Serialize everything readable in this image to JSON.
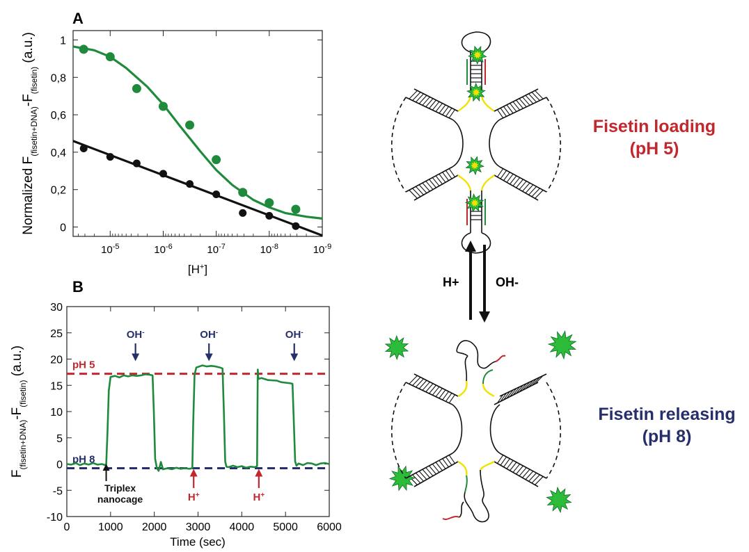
{
  "colors": {
    "green": "#1f8a3c",
    "black": "#111111",
    "red": "#c1272d",
    "navy": "#262f6b",
    "yellow": "#f2e200",
    "burst": "#2dbb3a"
  },
  "chart_data": [
    {
      "panel": "A",
      "type": "scatter",
      "xlabel": "[H+]",
      "ylabel": "Normalized F(fisetin+DNA)-F(fisetin) (a.u.)",
      "x_scale": "log",
      "x_reversed": true,
      "xlim": [
        5.01e-05,
        9.99e-10
      ],
      "ylim": [
        -0.05,
        1.05
      ],
      "x_ticks": [
        {
          "value": 1e-05,
          "base": "10",
          "exp": "-5"
        },
        {
          "value": 1e-06,
          "base": "10",
          "exp": "-6"
        },
        {
          "value": 1e-07,
          "base": "10",
          "exp": "-7"
        },
        {
          "value": 1e-08,
          "base": "10",
          "exp": "-8"
        },
        {
          "value": 1e-09,
          "base": "10",
          "exp": "-9"
        }
      ],
      "y_ticks": [
        {
          "value": 0,
          "label": "0"
        },
        {
          "value": 0.2,
          "label": "0,2"
        },
        {
          "value": 0.4,
          "label": "0,4"
        },
        {
          "value": 0.6,
          "label": "0,6"
        },
        {
          "value": 0.8,
          "label": "0,8"
        },
        {
          "value": 1,
          "label": "1"
        }
      ],
      "series": [
        {
          "color": "green",
          "points": [
            [
              3.162e-05,
              0.95
            ],
            [
              1e-05,
              0.91
            ],
            [
              3.162e-06,
              0.74
            ],
            [
              1e-06,
              0.645
            ],
            [
              3.162e-07,
              0.545
            ],
            [
              1e-07,
              0.36
            ],
            [
              3.162e-08,
              0.185
            ],
            [
              1e-08,
              0.13
            ],
            [
              3.162e-09,
              0.095
            ]
          ],
          "fit": [
            [
              5.01e-05,
              0.965
            ],
            [
              2e-05,
              0.945
            ],
            [
              1e-05,
              0.91
            ],
            [
              5e-06,
              0.85
            ],
            [
              2e-06,
              0.75
            ],
            [
              1e-06,
              0.655
            ],
            [
              5e-07,
              0.545
            ],
            [
              2e-07,
              0.405
            ],
            [
              1e-07,
              0.305
            ],
            [
              5e-08,
              0.225
            ],
            [
              2e-08,
              0.145
            ],
            [
              1e-08,
              0.105
            ],
            [
              5e-09,
              0.075
            ],
            [
              2e-09,
              0.055
            ],
            [
              9.99e-10,
              0.045
            ]
          ]
        },
        {
          "color": "black",
          "points": [
            [
              3.162e-05,
              0.42
            ],
            [
              1e-05,
              0.375
            ],
            [
              3.162e-06,
              0.34
            ],
            [
              1e-06,
              0.285
            ],
            [
              3.162e-07,
              0.23
            ],
            [
              1e-07,
              0.175
            ],
            [
              3.162e-08,
              0.075
            ],
            [
              1e-08,
              0.06
            ],
            [
              3.162e-09,
              0.005
            ]
          ],
          "fit": [
            [
              5.01e-05,
              0.46
            ],
            [
              9.99e-10,
              -0.045
            ]
          ]
        }
      ]
    },
    {
      "panel": "B",
      "type": "line",
      "xlabel": "Time (sec)",
      "ylabel": "F(fisetin+DNA)-F(fisetin) (a.u.)",
      "xlim": [
        0,
        6000
      ],
      "ylim": [
        -10,
        30
      ],
      "x_ticks": [
        0,
        1000,
        2000,
        3000,
        4000,
        5000,
        6000
      ],
      "y_ticks": [
        -10,
        -5,
        0,
        5,
        10,
        15,
        20,
        25,
        30
      ],
      "reference_lines": [
        {
          "label": "pH 5",
          "y": 17.2,
          "color": "red"
        },
        {
          "label": "pH 8",
          "y": -0.8,
          "color": "navy"
        }
      ],
      "trace": [
        [
          0,
          0
        ],
        [
          100,
          -0.1
        ],
        [
          200,
          0.2
        ],
        [
          300,
          -0.2
        ],
        [
          400,
          0.1
        ],
        [
          500,
          -0.1
        ],
        [
          600,
          0.2
        ],
        [
          700,
          -0.1
        ],
        [
          800,
          0
        ],
        [
          880,
          -0.2
        ],
        [
          900,
          0
        ],
        [
          930,
          6
        ],
        [
          960,
          14
        ],
        [
          1000,
          16.6
        ],
        [
          1100,
          16.8
        ],
        [
          1200,
          16.5
        ],
        [
          1300,
          16.9
        ],
        [
          1400,
          16.7
        ],
        [
          1500,
          16.9
        ],
        [
          1600,
          16.8
        ],
        [
          1700,
          16.9
        ],
        [
          1800,
          17.1
        ],
        [
          1900,
          17.0
        ],
        [
          1960,
          16.9
        ],
        [
          1990,
          10
        ],
        [
          2020,
          1
        ],
        [
          2060,
          -0.8
        ],
        [
          2100,
          -1.3
        ],
        [
          2150,
          0.4
        ],
        [
          2200,
          -1.0
        ],
        [
          2300,
          -0.8
        ],
        [
          2400,
          -1.0
        ],
        [
          2500,
          -0.7
        ],
        [
          2600,
          -0.9
        ],
        [
          2700,
          -0.8
        ],
        [
          2800,
          -0.9
        ],
        [
          2870,
          -0.8
        ],
        [
          2890,
          8
        ],
        [
          2920,
          17
        ],
        [
          2960,
          18.4
        ],
        [
          3000,
          18.5
        ],
        [
          3100,
          18.8
        ],
        [
          3200,
          18.6
        ],
        [
          3300,
          18.7
        ],
        [
          3400,
          18.6
        ],
        [
          3500,
          18.4
        ],
        [
          3560,
          18.2
        ],
        [
          3590,
          10
        ],
        [
          3620,
          0.5
        ],
        [
          3650,
          -0.5
        ],
        [
          3700,
          -0.6
        ],
        [
          3800,
          -0.3
        ],
        [
          3900,
          -0.6
        ],
        [
          4000,
          -0.4
        ],
        [
          4100,
          -0.7
        ],
        [
          4200,
          -0.5
        ],
        [
          4300,
          -0.6
        ],
        [
          4350,
          -0.4
        ],
        [
          4365,
          18
        ],
        [
          4380,
          16.2
        ],
        [
          4450,
          16.4
        ],
        [
          4600,
          16
        ],
        [
          4800,
          15.9
        ],
        [
          4900,
          15.6
        ],
        [
          5000,
          15.5
        ],
        [
          5100,
          15.4
        ],
        [
          5160,
          15.3
        ],
        [
          5190,
          8
        ],
        [
          5220,
          0.5
        ],
        [
          5250,
          -0.3
        ],
        [
          5300,
          0.1
        ],
        [
          5400,
          -0.2
        ],
        [
          5500,
          0.2
        ],
        [
          5600,
          0.1
        ],
        [
          5700,
          -0.2
        ],
        [
          5800,
          0.1
        ],
        [
          5900,
          0.2
        ],
        [
          6000,
          0
        ]
      ],
      "annotations": [
        {
          "text": "OH-",
          "kind": "down-arrow",
          "x": 1570,
          "color": "navy"
        },
        {
          "text": "OH-",
          "kind": "down-arrow",
          "x": 3250,
          "color": "navy"
        },
        {
          "text": "OH-",
          "kind": "down-arrow",
          "x": 5200,
          "color": "navy"
        },
        {
          "text": "H+",
          "kind": "up-arrow",
          "x": 2900,
          "color": "red"
        },
        {
          "text": "H+",
          "kind": "up-arrow",
          "x": 4390,
          "color": "red"
        },
        {
          "text": "Triplex nanocage",
          "kind": "up-arrow",
          "x": 900,
          "color": "black"
        }
      ]
    }
  ],
  "scheme": {
    "loading_label": "Fisetin loading",
    "loading_ph": "(pH 5)",
    "releasing_label": "Fisetin releasing",
    "releasing_ph": "(pH 8)",
    "h_label": "H+",
    "oh_label": "OH-"
  },
  "panel_letters": {
    "a": "A",
    "b": "B"
  }
}
